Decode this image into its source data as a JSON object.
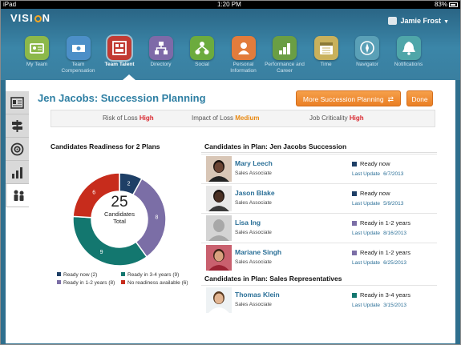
{
  "status_bar": {
    "carrier": "iPad",
    "time": "1:20 PM",
    "battery": "83%"
  },
  "header": {
    "logo": [
      "VISI",
      "N"
    ],
    "user_name": "Jamie Frost",
    "nav": [
      {
        "label": "My Team",
        "color": "#8cb84a",
        "icon": "team-icon"
      },
      {
        "label": "Team Compensation",
        "color": "#4c8fc8",
        "icon": "compensation-icon"
      },
      {
        "label": "Team Talent",
        "color": "#c23b33",
        "icon": "talent-icon",
        "active": true
      },
      {
        "label": "Directory",
        "color": "#7e6aa8",
        "icon": "directory-icon"
      },
      {
        "label": "Social",
        "color": "#6cab3e",
        "icon": "social-icon"
      },
      {
        "label": "Personal Information",
        "color": "#e27c3c",
        "icon": "personal-icon"
      },
      {
        "label": "Performance and Career",
        "color": "#6a9e44",
        "icon": "performance-icon"
      },
      {
        "label": "Time",
        "color": "#c9b15c",
        "icon": "time-icon"
      },
      {
        "label": "Navigator",
        "color": "#5aa0b7",
        "icon": "navigator-icon"
      },
      {
        "label": "Notifications",
        "color": "#4fa6a9",
        "icon": "notifications-icon"
      }
    ]
  },
  "page": {
    "title": "Jen Jacobs: Succession Planning",
    "more_button": "More Succession Planning",
    "done_button": "Done",
    "risk": {
      "loss_label": "Risk of Loss",
      "loss_value": "High",
      "impact_label": "Impact of Loss",
      "impact_value": "Medium",
      "criticality_label": "Job Criticality",
      "criticality_value": "High"
    }
  },
  "readiness": {
    "title": "Candidates Readiness for 2 Plans",
    "total": "25",
    "total_label_1": "Candidates",
    "total_label_2": "Total",
    "legend": [
      "Ready now (2)",
      "Ready in 3-4 years (9)",
      "Ready in 1-2 years (8)",
      "No readiness available (6)"
    ]
  },
  "chart_data": {
    "type": "pie",
    "title": "Candidates Readiness for 2 Plans",
    "categories": [
      "Ready now",
      "Ready in 1-2 years",
      "Ready in 3-4 years",
      "No readiness available"
    ],
    "values": [
      2,
      8,
      9,
      6
    ],
    "colors": [
      "#1e3f66",
      "#7b6ea6",
      "#13776f",
      "#c72c1c"
    ]
  },
  "plan1": {
    "title": "Candidates in Plan: Jen Jacobs Succession",
    "candidates": [
      {
        "name": "Mary Leech",
        "role": "Sales Associate",
        "status": "Ready now",
        "status_color": "#1e3f66",
        "update_label": "Last Update",
        "update_date": "6/7/2013",
        "avatar_bg": "#d8c6b6",
        "skin": "#6b4433",
        "hair": "#1a120e",
        "shirt": "#222222"
      },
      {
        "name": "Jason Blake",
        "role": "Sales Associate",
        "status": "Ready now",
        "status_color": "#1e3f66",
        "update_label": "Last Update",
        "update_date": "5/9/2013",
        "avatar_bg": "#e8e8e8",
        "skin": "#4a3024",
        "hair": "#1b1411",
        "shirt": "#3a3a3a"
      },
      {
        "name": "Lisa Ing",
        "role": "Sales Associate",
        "status": "Ready in 1-2 years",
        "status_color": "#7b6ea6",
        "update_label": "Last Update",
        "update_date": "8/16/2013",
        "avatar_bg": "#d4d4d4",
        "skin": "#a8a8a8",
        "hair": "#a8a8a8",
        "shirt": "#a8a8a8"
      },
      {
        "name": "Mariane Singh",
        "role": "Sales Associate",
        "status": "Ready in 1-2 years",
        "status_color": "#7b6ea6",
        "update_label": "Last Update",
        "update_date": "6/25/2013",
        "avatar_bg": "#c9606e",
        "skin": "#d9a27f",
        "hair": "#3d2116",
        "shirt": "#9b2233"
      }
    ]
  },
  "plan2": {
    "title": "Candidates in Plan: Sales Representatives",
    "candidates": [
      {
        "name": "Thomas Klein",
        "role": "Sales Associate",
        "status": "Ready in 3-4 years",
        "status_color": "#13776f",
        "update_label": "Last Update",
        "update_date": "3/15/2013",
        "avatar_bg": "#eef2f4",
        "skin": "#e2b592",
        "hair": "#5a3b22",
        "shirt": "#ffffff"
      }
    ]
  }
}
